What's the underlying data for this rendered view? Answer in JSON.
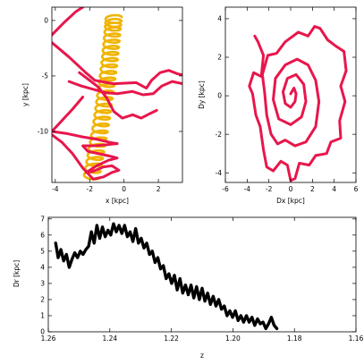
{
  "chart_data": [
    {
      "id": "panel-xy",
      "type": "line",
      "xlabel": "x [kpc]",
      "ylabel": "y [kpc]",
      "xlim": [
        -4.2,
        3.4
      ],
      "ylim": [
        -14.6,
        1.2
      ],
      "xticks": [
        -4,
        -2,
        0,
        2
      ],
      "yticks": [
        0,
        -5,
        -10
      ],
      "grid": false,
      "series": [
        {
          "color": "#f0b400",
          "line_style": "loopy helix",
          "points": [
            [
              -1.9,
              -14.2
            ],
            [
              -1.7,
              -12.5
            ],
            [
              -1.5,
              -10.8
            ],
            [
              -1.3,
              -9.0
            ],
            [
              -1.15,
              -7.3
            ],
            [
              -1.0,
              -5.6
            ],
            [
              -0.85,
              -3.9
            ],
            [
              -0.75,
              -2.3
            ],
            [
              -0.65,
              -0.7
            ],
            [
              -0.6,
              0.3
            ]
          ]
        },
        {
          "color": "#e8164c",
          "line_style": "solid",
          "points": [
            [
              -4.2,
              -1.3
            ],
            [
              -3.5,
              -0.2
            ],
            [
              -2.8,
              0.8
            ],
            [
              -2.4,
              1.2
            ]
          ]
        },
        {
          "color": "#e8164c",
          "line_style": "solid",
          "points": [
            [
              -4.2,
              -2.0
            ],
            [
              -3.2,
              -3.3
            ],
            [
              -2.3,
              -4.6
            ],
            [
              -1.7,
              -5.4
            ],
            [
              -0.6,
              -5.7
            ],
            [
              0.7,
              -5.6
            ],
            [
              1.3,
              -6.1
            ],
            [
              1.6,
              -5.4
            ],
            [
              2.1,
              -4.7
            ],
            [
              2.6,
              -4.5
            ],
            [
              3.1,
              -4.8
            ],
            [
              3.4,
              -4.9
            ]
          ]
        },
        {
          "color": "#e8164c",
          "line_style": "solid",
          "points": [
            [
              -3.2,
              -5.5
            ],
            [
              -2.5,
              -5.9
            ],
            [
              -1.8,
              -6.2
            ],
            [
              -1.1,
              -6.5
            ],
            [
              -0.4,
              -6.6
            ],
            [
              0.5,
              -6.4
            ],
            [
              1.1,
              -6.7
            ],
            [
              1.7,
              -6.6
            ],
            [
              2.2,
              -5.9
            ],
            [
              2.8,
              -5.5
            ],
            [
              3.4,
              -5.7
            ]
          ]
        },
        {
          "color": "#e8164c",
          "line_style": "solid",
          "points": [
            [
              -2.6,
              -4.7
            ],
            [
              -2.0,
              -5.4
            ],
            [
              -1.5,
              -6.0
            ],
            [
              -1.0,
              -7.0
            ],
            [
              -0.6,
              -8.2
            ],
            [
              -0.1,
              -8.8
            ],
            [
              0.5,
              -8.5
            ],
            [
              1.0,
              -8.8
            ],
            [
              1.5,
              -8.4
            ],
            [
              1.9,
              -8.1
            ]
          ]
        },
        {
          "color": "#e8164c",
          "line_style": "solid",
          "points": [
            [
              -2.4,
              -6.9
            ],
            [
              -3.0,
              -8.0
            ],
            [
              -3.6,
              -9.0
            ],
            [
              -4.2,
              -10.0
            ],
            [
              -3.3,
              -10.2
            ],
            [
              -2.4,
              -10.5
            ],
            [
              -1.6,
              -10.7
            ],
            [
              -0.8,
              -11.0
            ],
            [
              -0.4,
              -11.1
            ]
          ]
        },
        {
          "color": "#e8164c",
          "line_style": "solid",
          "points": [
            [
              -4.2,
              -10.3
            ],
            [
              -3.6,
              -11.0
            ],
            [
              -3.0,
              -12.0
            ],
            [
              -2.4,
              -13.3
            ],
            [
              -1.8,
              -14.3
            ],
            [
              -1.2,
              -14.1
            ],
            [
              -0.7,
              -13.7
            ],
            [
              -0.3,
              -13.5
            ],
            [
              -0.7,
              -13.1
            ],
            [
              -1.2,
              -13.2
            ],
            [
              -1.8,
              -13.6
            ],
            [
              -2.2,
              -13.7
            ],
            [
              -1.6,
              -13.1
            ],
            [
              -0.9,
              -12.6
            ],
            [
              -0.4,
              -12.4
            ],
            [
              -0.9,
              -12.2
            ],
            [
              -1.5,
              -12.0
            ],
            [
              -2.1,
              -11.8
            ],
            [
              -2.4,
              -11.3
            ],
            [
              -1.8,
              -11.3
            ],
            [
              -1.0,
              -11.2
            ],
            [
              -0.4,
              -11.1
            ]
          ]
        }
      ]
    },
    {
      "id": "panel-dxdy",
      "type": "line",
      "xlabel": "Dx [kpc]",
      "ylabel": "Dy [kpc]",
      "xlim": [
        -6,
        6
      ],
      "ylim": [
        -4.5,
        4.6
      ],
      "xticks": [
        -6,
        -4,
        -2,
        0,
        2,
        4,
        6
      ],
      "yticks": [
        -4,
        -2,
        0,
        2,
        4
      ],
      "grid": false,
      "series": [
        {
          "color": "#e8164c",
          "line_style": "solid",
          "points": [
            [
              0.0,
              0.1
            ],
            [
              0.3,
              0.4
            ],
            [
              0.5,
              0.1
            ],
            [
              0.4,
              -0.3
            ],
            [
              0.0,
              -0.6
            ],
            [
              -0.5,
              -0.4
            ],
            [
              -0.7,
              0.2
            ],
            [
              -0.3,
              0.9
            ],
            [
              0.5,
              1.1
            ],
            [
              1.2,
              0.6
            ],
            [
              1.4,
              -0.3
            ],
            [
              1.0,
              -1.1
            ],
            [
              0.0,
              -1.5
            ],
            [
              -1.1,
              -1.2
            ],
            [
              -1.6,
              -0.2
            ],
            [
              -1.4,
              0.9
            ],
            [
              -0.5,
              1.6
            ],
            [
              0.6,
              1.9
            ],
            [
              1.6,
              1.6
            ],
            [
              2.3,
              0.8
            ],
            [
              2.6,
              -0.3
            ],
            [
              2.3,
              -1.6
            ],
            [
              1.4,
              -2.4
            ],
            [
              0.4,
              -2.6
            ],
            [
              -0.5,
              -2.3
            ],
            [
              -1.2,
              -2.5
            ],
            [
              -1.8,
              -2.0
            ],
            [
              -2.2,
              -1.0
            ],
            [
              -2.4,
              0.2
            ],
            [
              -2.6,
              1.1
            ],
            [
              -2.1,
              2.1
            ],
            [
              -1.3,
              2.2
            ],
            [
              -0.5,
              2.8
            ],
            [
              0.7,
              3.3
            ],
            [
              1.6,
              3.1
            ],
            [
              2.2,
              3.6
            ],
            [
              2.7,
              3.5
            ],
            [
              3.4,
              2.9
            ],
            [
              4.1,
              2.6
            ],
            [
              4.9,
              2.3
            ],
            [
              5.1,
              1.3
            ],
            [
              4.6,
              0.5
            ],
            [
              5.0,
              -0.3
            ],
            [
              4.5,
              -1.3
            ],
            [
              4.6,
              -2.2
            ],
            [
              3.7,
              -2.4
            ],
            [
              3.3,
              -3.0
            ],
            [
              2.3,
              -3.1
            ],
            [
              1.7,
              -3.6
            ],
            [
              0.8,
              -3.5
            ],
            [
              0.4,
              -4.3
            ],
            [
              0.0,
              -4.4
            ],
            [
              -0.3,
              -3.6
            ],
            [
              -0.9,
              -3.4
            ],
            [
              -1.6,
              -3.9
            ],
            [
              -2.2,
              -3.7
            ],
            [
              -2.5,
              -2.8
            ],
            [
              -2.8,
              -1.6
            ],
            [
              -3.2,
              -1.0
            ],
            [
              -3.5,
              0.1
            ],
            [
              -3.8,
              0.5
            ],
            [
              -3.4,
              1.2
            ],
            [
              -2.7,
              1.0
            ],
            [
              -2.5,
              2.1
            ],
            [
              -3.0,
              2.8
            ],
            [
              -3.3,
              3.1
            ]
          ]
        }
      ]
    },
    {
      "id": "panel-dr-z",
      "type": "line",
      "xlabel": "z",
      "ylabel": "Dr [kpc]",
      "xlim": [
        1.26,
        1.16
      ],
      "ylim": [
        0,
        7.1
      ],
      "xticks": [
        1.26,
        1.24,
        1.22,
        1.2,
        1.18,
        1.16
      ],
      "xtick_labels": [
        "1.26",
        "1.24",
        "1.22",
        "1.20",
        "1.18",
        "1.16"
      ],
      "yticks": [
        0,
        1,
        2,
        3,
        4,
        5,
        6,
        7
      ],
      "grid": false,
      "series": [
        {
          "color": "#000000",
          "line_style": "solid thick",
          "points": [
            [
              1.2576,
              5.5
            ],
            [
              1.2568,
              4.6
            ],
            [
              1.2559,
              5.1
            ],
            [
              1.255,
              4.4
            ],
            [
              1.2541,
              4.8
            ],
            [
              1.2532,
              4.0
            ],
            [
              1.2523,
              4.5
            ],
            [
              1.2514,
              4.9
            ],
            [
              1.2505,
              4.6
            ],
            [
              1.2496,
              5.0
            ],
            [
              1.2487,
              4.8
            ],
            [
              1.2478,
              5.1
            ],
            [
              1.2469,
              5.3
            ],
            [
              1.246,
              6.2
            ],
            [
              1.2451,
              5.5
            ],
            [
              1.2442,
              6.6
            ],
            [
              1.2433,
              5.8
            ],
            [
              1.2424,
              6.5
            ],
            [
              1.2415,
              5.9
            ],
            [
              1.2406,
              6.3
            ],
            [
              1.2397,
              6.0
            ],
            [
              1.2388,
              6.7
            ],
            [
              1.2379,
              6.2
            ],
            [
              1.237,
              6.6
            ],
            [
              1.2361,
              6.1
            ],
            [
              1.2352,
              6.6
            ],
            [
              1.2343,
              5.9
            ],
            [
              1.2334,
              6.2
            ],
            [
              1.2325,
              5.6
            ],
            [
              1.2316,
              6.4
            ],
            [
              1.2307,
              5.5
            ],
            [
              1.2298,
              5.8
            ],
            [
              1.2289,
              5.2
            ],
            [
              1.228,
              5.5
            ],
            [
              1.2271,
              4.8
            ],
            [
              1.2262,
              5.0
            ],
            [
              1.2253,
              4.3
            ],
            [
              1.2244,
              4.6
            ],
            [
              1.2235,
              3.9
            ],
            [
              1.2226,
              4.1
            ],
            [
              1.2217,
              3.3
            ],
            [
              1.2208,
              3.6
            ],
            [
              1.2199,
              3.0
            ],
            [
              1.219,
              3.5
            ],
            [
              1.2181,
              2.6
            ],
            [
              1.2172,
              3.3
            ],
            [
              1.2163,
              2.4
            ],
            [
              1.2154,
              2.9
            ],
            [
              1.2145,
              2.3
            ],
            [
              1.2136,
              2.9
            ],
            [
              1.2127,
              2.1
            ],
            [
              1.2118,
              2.8
            ],
            [
              1.2109,
              2.0
            ],
            [
              1.21,
              2.7
            ],
            [
              1.2091,
              1.9
            ],
            [
              1.2082,
              2.4
            ],
            [
              1.2073,
              1.7
            ],
            [
              1.2064,
              2.2
            ],
            [
              1.2055,
              1.6
            ],
            [
              1.2046,
              2.0
            ],
            [
              1.2037,
              1.4
            ],
            [
              1.2028,
              1.6
            ],
            [
              1.2019,
              1.0
            ],
            [
              1.201,
              1.3
            ],
            [
              1.2001,
              0.9
            ],
            [
              1.1992,
              1.3
            ],
            [
              1.1983,
              0.7
            ],
            [
              1.1974,
              1.0
            ],
            [
              1.1965,
              0.6
            ],
            [
              1.1956,
              1.0
            ],
            [
              1.1947,
              0.6
            ],
            [
              1.1938,
              0.9
            ],
            [
              1.1929,
              0.4
            ],
            [
              1.192,
              0.8
            ],
            [
              1.1911,
              0.5
            ],
            [
              1.1902,
              0.6
            ],
            [
              1.1893,
              0.2
            ],
            [
              1.1884,
              0.5
            ],
            [
              1.1875,
              0.9
            ],
            [
              1.1866,
              0.4
            ],
            [
              1.1857,
              0.2
            ]
          ]
        }
      ]
    }
  ]
}
